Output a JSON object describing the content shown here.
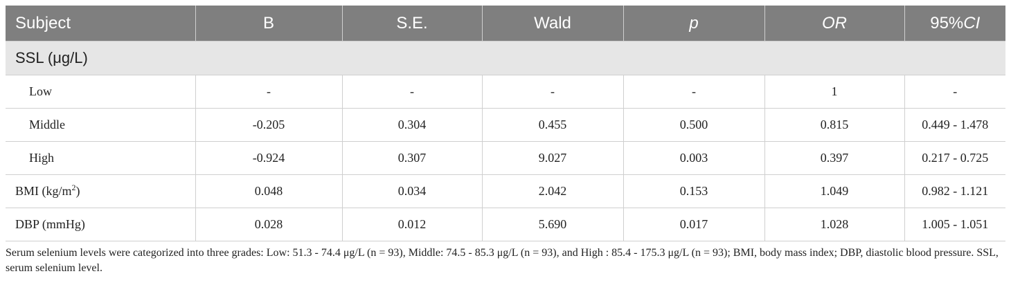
{
  "table": {
    "headers": [
      "Subject",
      "B",
      "S.E.",
      "Wald",
      "p",
      "OR",
      "95%CI"
    ],
    "section_label": "SSL (μg/L)",
    "rows": [
      {
        "subject": "Low",
        "b": "-",
        "se": "-",
        "wald": "-",
        "p": "-",
        "or": "1",
        "ci": "-"
      },
      {
        "subject": "Middle",
        "b": "-0.205",
        "se": "0.304",
        "wald": "0.455",
        "p": "0.500",
        "or": "0.815",
        "ci": "0.449 - 1.478"
      },
      {
        "subject": "High",
        "b": "-0.924",
        "se": "0.307",
        "wald": "9.027",
        "p": "0.003",
        "or": "0.397",
        "ci": "0.217 - 0.725"
      },
      {
        "subject_base": "BMI (kg/m",
        "subject_sup": "2",
        "subject_tail": ")",
        "b": "0.048",
        "se": "0.034",
        "wald": "2.042",
        "p": "0.153",
        "or": "1.049",
        "ci": "0.982 - 1.121"
      },
      {
        "subject": "DBP (mmHg)",
        "b": "0.028",
        "se": "0.012",
        "wald": "5.690",
        "p": "0.017",
        "or": "1.028",
        "ci": "1.005 - 1.051"
      }
    ]
  },
  "footnote": "Serum selenium levels were categorized into three grades: Low: 51.3 - 74.4 μg/L (n = 93), Middle: 74.5 - 85.3 μg/L (n = 93), and High : 85.4 - 175.3 μg/L (n = 93); BMI, body mass index; DBP, diastolic blood pressure. SSL, serum selenium level."
}
